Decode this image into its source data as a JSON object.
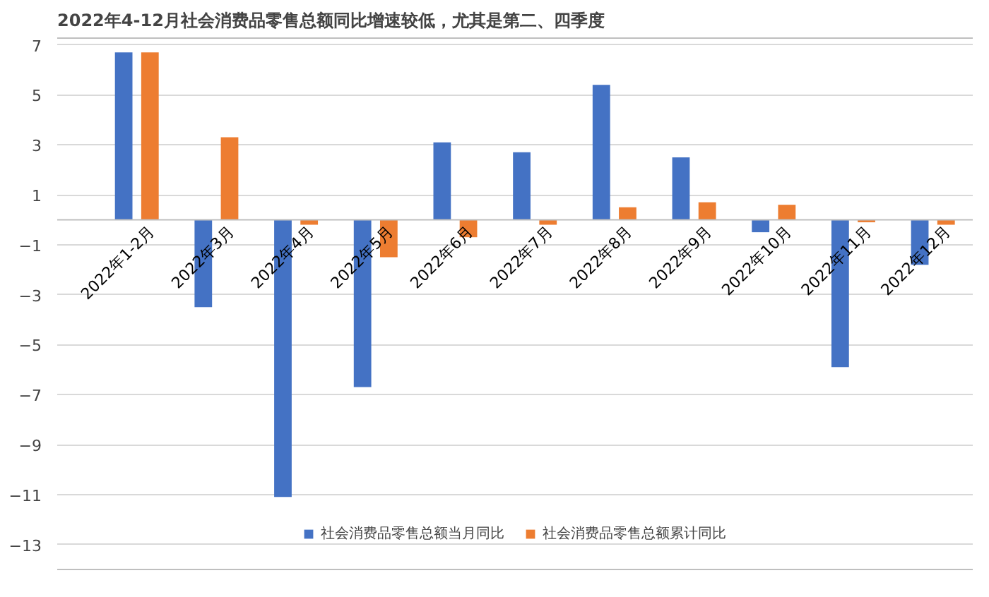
{
  "chart_data": {
    "type": "bar",
    "title": "2022年4-12月社会消费品零售总额同比增速较低，尤其是第二、四季度",
    "categories": [
      "2022年1-2月",
      "2022年3月",
      "2022年4月",
      "2022年5月",
      "2022年6月",
      "2022年7月",
      "2022年8月",
      "2022年9月",
      "2022年10月",
      "2022年11月",
      "2022年12月"
    ],
    "series": [
      {
        "name": "社会消费品零售总额当月同比",
        "color": "#4472c4",
        "values": [
          6.7,
          -3.5,
          -11.1,
          -6.7,
          3.1,
          2.7,
          5.4,
          2.5,
          -0.5,
          -5.9,
          -1.8
        ]
      },
      {
        "name": "社会消费品零售总额累计同比",
        "color": "#ed7d31",
        "values": [
          6.7,
          3.3,
          -0.2,
          -1.5,
          -0.7,
          -0.2,
          0.5,
          0.7,
          0.6,
          -0.1,
          -0.2
        ]
      }
    ],
    "ylim": [
      -14,
      7.3
    ],
    "yticks": [
      7,
      5,
      3,
      1,
      -1,
      -3,
      -5,
      -7,
      -9,
      -11,
      -13
    ],
    "grid": "y",
    "legend": "bottom"
  }
}
